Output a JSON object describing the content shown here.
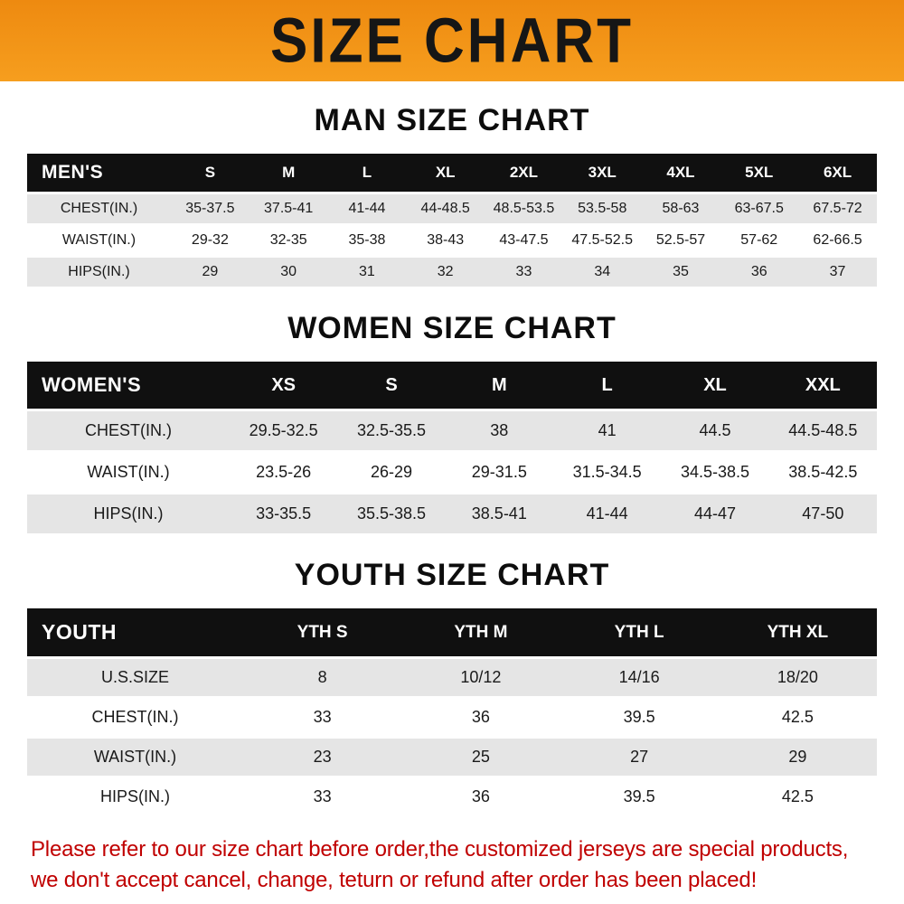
{
  "banner": {
    "title": "SIZE CHART"
  },
  "theme": {
    "banner_bg": "#EE8A10",
    "banner_bg2": "#F69E1E",
    "header_bg": "#101010",
    "row_alt_bg": "#E5E5E5",
    "notice_color": "#C00000"
  },
  "chart_data": [
    {
      "type": "table",
      "title": "MAN SIZE CHART",
      "header": [
        "MEN'S",
        "S",
        "M",
        "L",
        "XL",
        "2XL",
        "3XL",
        "4XL",
        "5XL",
        "6XL"
      ],
      "rows": [
        [
          "CHEST(IN.)",
          "35-37.5",
          "37.5-41",
          "41-44",
          "44-48.5",
          "48.5-53.5",
          "53.5-58",
          "58-63",
          "63-67.5",
          "67.5-72"
        ],
        [
          "WAIST(IN.)",
          "29-32",
          "32-35",
          "35-38",
          "38-43",
          "43-47.5",
          "47.5-52.5",
          "52.5-57",
          "57-62",
          "62-66.5"
        ],
        [
          "HIPS(IN.)",
          "29",
          "30",
          "31",
          "32",
          "33",
          "34",
          "35",
          "36",
          "37"
        ]
      ]
    },
    {
      "type": "table",
      "title": "WOMEN SIZE CHART",
      "header": [
        "WOMEN'S",
        "XS",
        "S",
        "M",
        "L",
        "XL",
        "XXL"
      ],
      "rows": [
        [
          "CHEST(IN.)",
          "29.5-32.5",
          "32.5-35.5",
          "38",
          "41",
          "44.5",
          "44.5-48.5"
        ],
        [
          "WAIST(IN.)",
          "23.5-26",
          "26-29",
          "29-31.5",
          "31.5-34.5",
          "34.5-38.5",
          "38.5-42.5"
        ],
        [
          "HIPS(IN.)",
          "33-35.5",
          "35.5-38.5",
          "38.5-41",
          "41-44",
          "44-47",
          "47-50"
        ]
      ]
    },
    {
      "type": "table",
      "title": "YOUTH SIZE CHART",
      "header": [
        "YOUTH",
        "YTH S",
        "YTH M",
        "YTH L",
        "YTH XL"
      ],
      "rows": [
        [
          "U.S.SIZE",
          "8",
          "10/12",
          "14/16",
          "18/20"
        ],
        [
          "CHEST(IN.)",
          "33",
          "36",
          "39.5",
          "42.5"
        ],
        [
          "WAIST(IN.)",
          "23",
          "25",
          "27",
          "29"
        ],
        [
          "HIPS(IN.)",
          "33",
          "36",
          "39.5",
          "42.5"
        ]
      ]
    }
  ],
  "footer": {
    "line1": "Please refer to our size chart before order,the customized jerseys are special products,",
    "line2": "we don't accept cancel, change, teturn or refund after order has been placed!"
  }
}
